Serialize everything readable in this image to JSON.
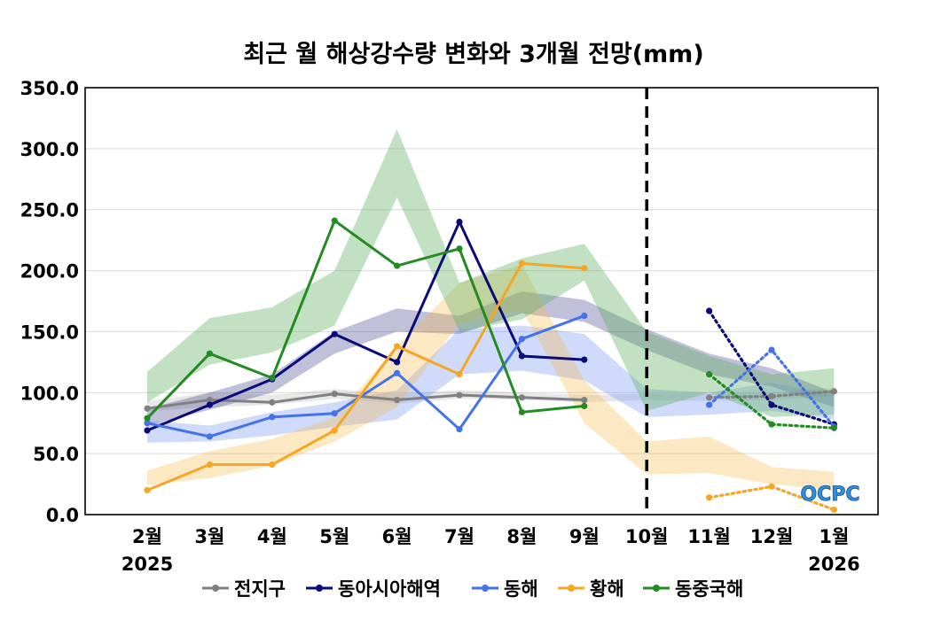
{
  "chart_data": {
    "type": "line",
    "title": "최근 월 해상강수량 변화와 3개월 전망(mm)",
    "categories": [
      "2월",
      "3월",
      "4월",
      "5월",
      "6월",
      "7월",
      "8월",
      "9월",
      "10월",
      "11월",
      "12월",
      "1월"
    ],
    "year_labels": [
      {
        "index": 0,
        "text": "2025"
      },
      {
        "index": 11,
        "text": "2026"
      }
    ],
    "ylim": [
      0,
      350
    ],
    "yticks": [
      0,
      50,
      100,
      150,
      200,
      250,
      300,
      350
    ],
    "ytick_labels": [
      "0.0",
      "50.0",
      "100.0",
      "150.0",
      "200.0",
      "250.0",
      "300.0",
      "350.0"
    ],
    "forecast_divider_index": 8,
    "series": [
      {
        "name": "전지구",
        "color": "#808080",
        "band_color": "#808080",
        "band_opacity": 0.18,
        "values": [
          87,
          94,
          92,
          99,
          94,
          98,
          96,
          94,
          null,
          null,
          null,
          null
        ],
        "forecast": [
          null,
          null,
          null,
          null,
          null,
          null,
          null,
          null,
          null,
          96,
          97,
          101
        ],
        "band": [
          [
            85,
            93
          ],
          [
            88,
            100
          ],
          [
            90,
            98
          ],
          [
            95,
            103
          ],
          [
            91,
            99
          ],
          [
            95,
            102
          ],
          [
            94,
            100
          ],
          [
            92,
            98
          ],
          [
            94,
            99
          ],
          [
            93,
            99
          ],
          [
            94,
            100
          ],
          [
            97,
            104
          ]
        ]
      },
      {
        "name": "동아시아해역",
        "color": "#0a0a78",
        "band_color": "#3a3a8a",
        "band_opacity": 0.32,
        "values": [
          69,
          90,
          111,
          148,
          125,
          240,
          130,
          127,
          null,
          null,
          null,
          null
        ],
        "forecast": [
          null,
          null,
          null,
          null,
          null,
          null,
          null,
          null,
          null,
          167,
          90,
          74
        ],
        "band": [
          [
            73,
            87
          ],
          [
            86,
            100
          ],
          [
            100,
            115
          ],
          [
            132,
            150
          ],
          [
            150,
            169
          ],
          [
            148,
            163
          ],
          [
            165,
            183
          ],
          [
            158,
            176
          ],
          [
            135,
            152
          ],
          [
            115,
            132
          ],
          [
            105,
            120
          ],
          [
            88,
            100
          ]
        ]
      },
      {
        "name": "동해",
        "color": "#4472e8",
        "band_color": "#6d8ff5",
        "band_opacity": 0.32,
        "values": [
          75,
          64,
          80,
          83,
          116,
          70,
          144,
          163,
          null,
          null,
          null,
          null
        ],
        "forecast": [
          null,
          null,
          null,
          null,
          null,
          null,
          null,
          null,
          null,
          90,
          135,
          72
        ],
        "band": [
          [
            59,
            77
          ],
          [
            60,
            73
          ],
          [
            65,
            84
          ],
          [
            72,
            92
          ],
          [
            78,
            102
          ],
          [
            115,
            152
          ],
          [
            118,
            155
          ],
          [
            110,
            148
          ],
          [
            80,
            103
          ],
          [
            82,
            100
          ],
          [
            85,
            108
          ],
          [
            78,
            98
          ]
        ]
      },
      {
        "name": "황해",
        "color": "#f5a623",
        "band_color": "#f5b945",
        "band_opacity": 0.32,
        "values": [
          20,
          41,
          41,
          69,
          138,
          115,
          206,
          202,
          null,
          null,
          null,
          null
        ],
        "forecast": [
          null,
          null,
          null,
          null,
          null,
          null,
          null,
          null,
          null,
          14,
          23,
          4
        ],
        "band": [
          [
            24,
            36
          ],
          [
            30,
            52
          ],
          [
            40,
            62
          ],
          [
            60,
            80
          ],
          [
            88,
            138
          ],
          [
            157,
            190
          ],
          [
            168,
            205
          ],
          [
            75,
            110
          ],
          [
            33,
            60
          ],
          [
            34,
            64
          ],
          [
            25,
            39
          ],
          [
            20,
            35
          ]
        ]
      },
      {
        "name": "동중국해",
        "color": "#228b22",
        "band_color": "#5fae5f",
        "band_opacity": 0.38,
        "values": [
          79,
          132,
          112,
          241,
          204,
          218,
          84,
          89,
          null,
          null,
          null,
          null
        ],
        "forecast": [
          null,
          null,
          null,
          null,
          null,
          null,
          null,
          null,
          null,
          115,
          74,
          71
        ],
        "band": [
          [
            92,
            117
          ],
          [
            123,
            161
          ],
          [
            133,
            170
          ],
          [
            155,
            200
          ],
          [
            260,
            316
          ],
          [
            150,
            190
          ],
          [
            160,
            210
          ],
          [
            192,
            222
          ],
          [
            85,
            150
          ],
          [
            100,
            130
          ],
          [
            80,
            115
          ],
          [
            82,
            120
          ]
        ]
      }
    ],
    "legend": [
      "전지구",
      "동아시아해역",
      "동해",
      "황해",
      "동중국해"
    ]
  },
  "logo": {
    "text": "OCPC"
  }
}
